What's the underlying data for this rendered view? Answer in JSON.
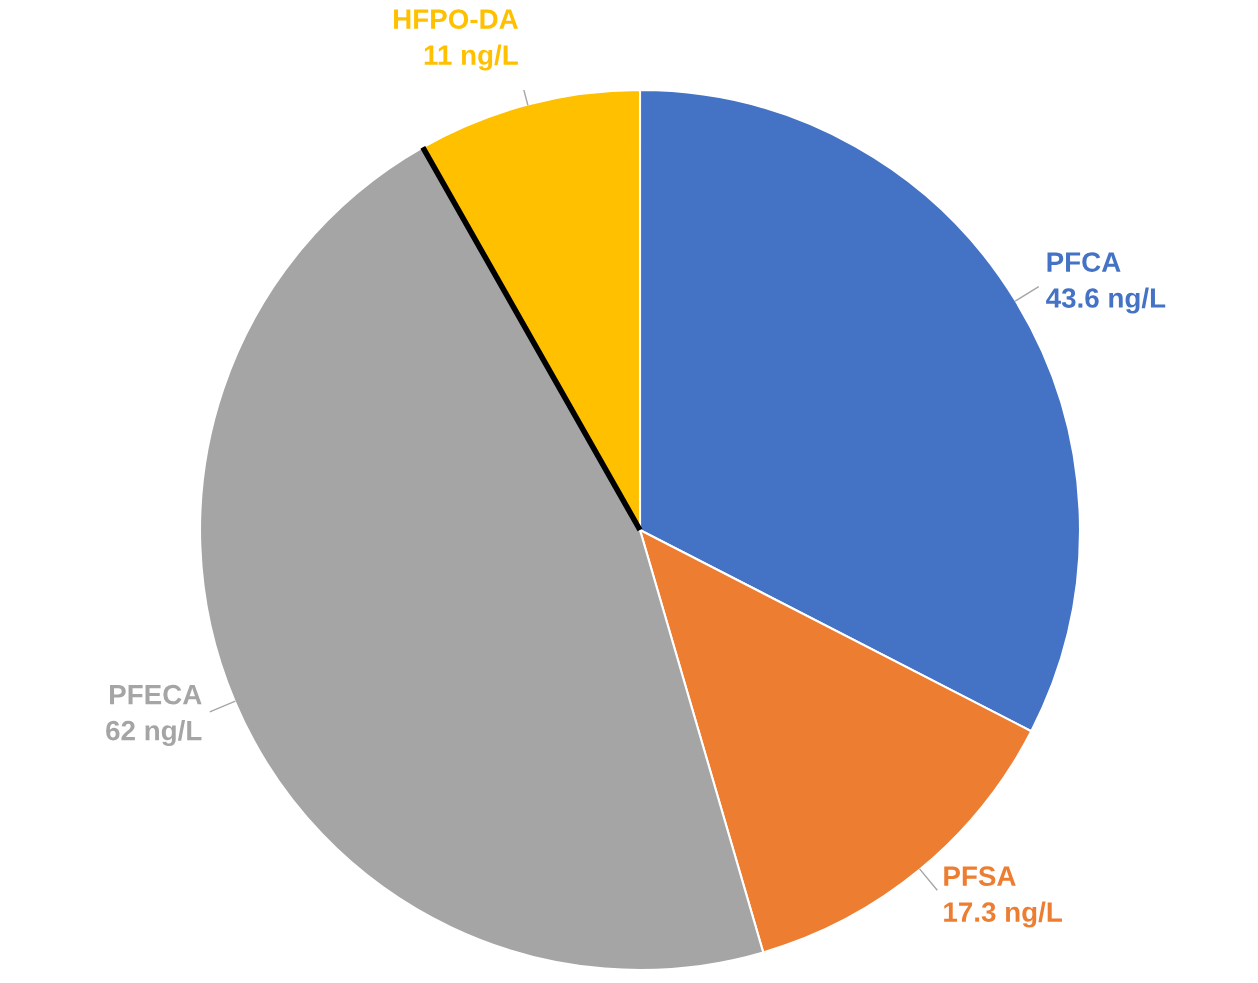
{
  "chart_data": {
    "type": "pie",
    "categories": [
      "PFCA",
      "PFSA",
      "PFECA",
      "HFPO-DA"
    ],
    "values": [
      43.6,
      17.3,
      62,
      11
    ],
    "value_labels": [
      "43.6 ng/L",
      "17.3 ng/L",
      "62 ng/L",
      "11 ng/L"
    ],
    "colors": [
      "#4472c4",
      "#ed7d31",
      "#a5a5a5",
      "#ffc000"
    ]
  }
}
